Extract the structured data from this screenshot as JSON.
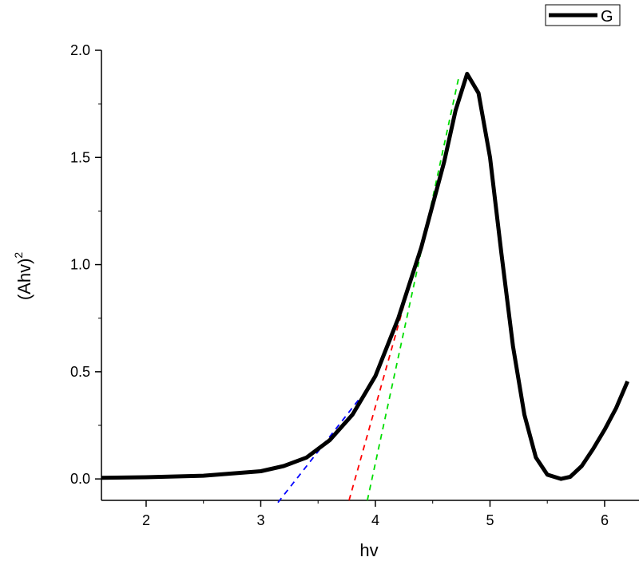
{
  "chart_data": {
    "type": "line",
    "x_label": "hv",
    "y_label": "(Ahv)",
    "y_label_superscript": "2",
    "xlim": [
      1.61,
      6.3
    ],
    "ylim": [
      -0.1,
      2.0
    ],
    "xticks": [
      2,
      3,
      4,
      5,
      6
    ],
    "yticks": [
      {
        "value": 0,
        "label": "0.0"
      },
      0.5,
      {
        "value": 1,
        "label": "1.0"
      },
      1.5,
      {
        "value": 2,
        "label": "2.0"
      }
    ],
    "legend_position": "top-right",
    "series": [
      {
        "name": "G",
        "color": "#000000",
        "x": [
          1.61,
          2.0,
          2.5,
          3.0,
          3.2,
          3.4,
          3.6,
          3.8,
          4.0,
          4.2,
          4.4,
          4.6,
          4.7,
          4.8,
          4.9,
          5.0,
          5.1,
          5.2,
          5.3,
          5.4,
          5.5,
          5.62,
          5.7,
          5.8,
          5.9,
          6.0,
          6.1,
          6.2
        ],
        "values": [
          0.005,
          0.008,
          0.015,
          0.036,
          0.06,
          0.1,
          0.18,
          0.3,
          0.48,
          0.75,
          1.08,
          1.48,
          1.72,
          1.89,
          1.8,
          1.5,
          1.05,
          0.62,
          0.3,
          0.1,
          0.02,
          0.0,
          0.01,
          0.06,
          0.14,
          0.23,
          0.33,
          0.455
        ]
      }
    ],
    "fit_lines": [
      {
        "color": "#0000ff",
        "x": [
          3.15,
          3.87
        ],
        "values": [
          -0.11,
          0.38
        ]
      },
      {
        "color": "#ff0000",
        "x": [
          3.77,
          4.49
        ],
        "values": [
          -0.1,
          1.27
        ]
      },
      {
        "color": "#00dd00",
        "x": [
          3.93,
          4.73
        ],
        "values": [
          -0.1,
          1.88
        ]
      }
    ]
  }
}
